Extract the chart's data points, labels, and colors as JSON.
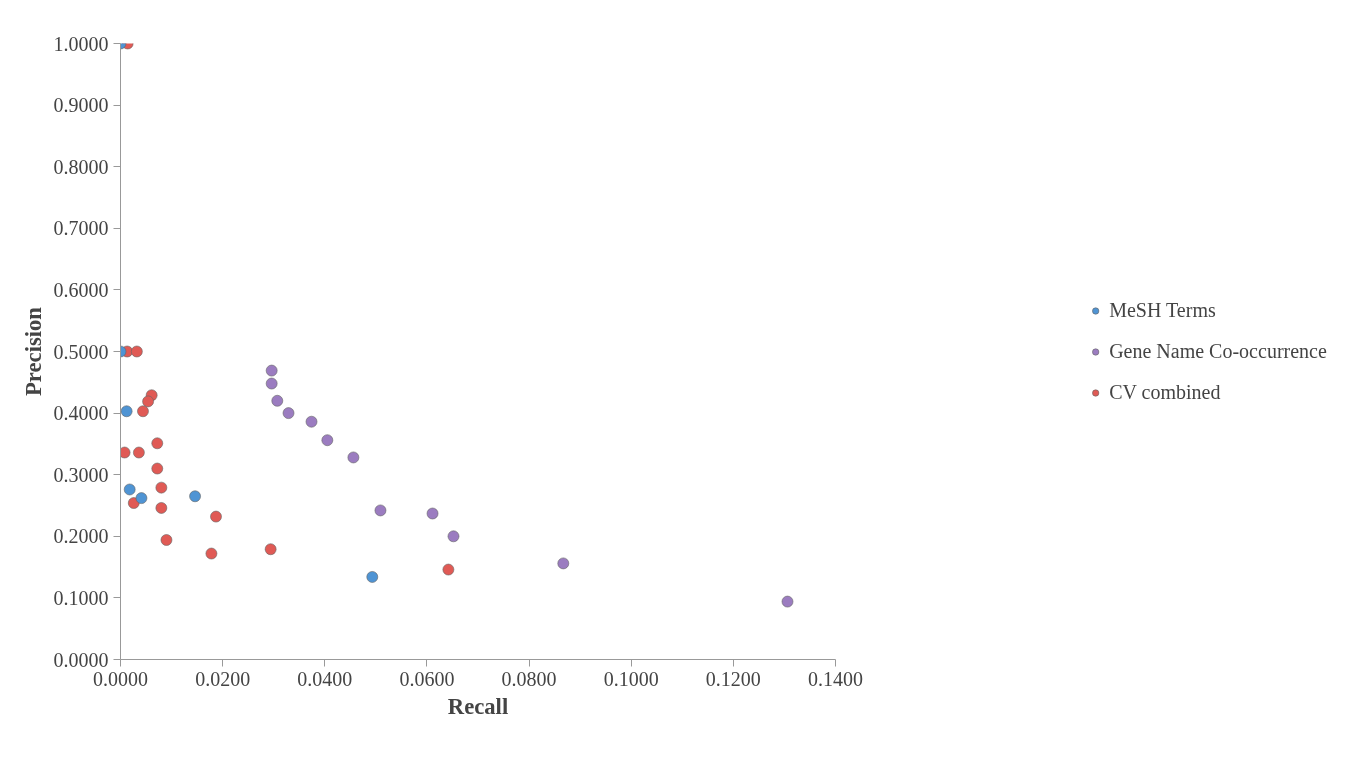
{
  "chart_data": {
    "type": "scatter",
    "xlabel": "Recall",
    "ylabel": "Precision",
    "marker": "circle",
    "legend": "right",
    "grid": false,
    "xlim": [
      0,
      0.14
    ],
    "ylim": [
      0,
      1
    ],
    "xticks": [
      {
        "value": 0,
        "label": "0.0000"
      },
      {
        "value": 0.02,
        "label": "0.0200"
      },
      {
        "value": 0.04,
        "label": "0.0400"
      },
      {
        "value": 0.06,
        "label": "0.0600"
      },
      {
        "value": 0.08,
        "label": "0.0800"
      },
      {
        "value": 0.1,
        "label": "0.1000"
      },
      {
        "value": 0.12,
        "label": "0.1200"
      },
      {
        "value": 0.14,
        "label": "0.1400"
      }
    ],
    "yticks": [
      {
        "value": 0,
        "label": "0.0000"
      },
      {
        "value": 0.1,
        "label": "0.1000"
      },
      {
        "value": 0.2,
        "label": "0.2000"
      },
      {
        "value": 0.3,
        "label": "0.3000"
      },
      {
        "value": 0.4,
        "label": "0.4000"
      },
      {
        "value": 0.5,
        "label": "0.5000"
      },
      {
        "value": 0.6,
        "label": "0.6000"
      },
      {
        "value": 0.7,
        "label": "0.7000"
      },
      {
        "value": 0.8,
        "label": "0.8000"
      },
      {
        "value": 0.9,
        "label": "0.9000"
      },
      {
        "value": 1,
        "label": "1.0000"
      }
    ],
    "series": [
      {
        "name": "MeSH Terms",
        "color": "#4f94d4",
        "x": [
          0,
          0,
          0.0012,
          0.0018,
          0.0041,
          0.0146,
          0.0493
        ],
        "values": [
          1.0,
          0.5,
          0.403,
          0.276,
          0.262,
          0.265,
          0.134
        ]
      },
      {
        "name": "Gene Name Co-occurrence",
        "color": "#9b7cc0",
        "x": [
          0.0296,
          0.0296,
          0.0307,
          0.0329,
          0.0374,
          0.0405,
          0.0456,
          0.0509,
          0.0611,
          0.0652,
          0.0867,
          0.1306
        ],
        "values": [
          0.469,
          0.448,
          0.42,
          0.4,
          0.386,
          0.356,
          0.328,
          0.242,
          0.237,
          0.2,
          0.156,
          0.094
        ]
      },
      {
        "name": "CV combined",
        "color": "#e05a55",
        "x": [
          0.0014,
          0.0013,
          0.0032,
          0.0061,
          0.0054,
          0.0044,
          0.0072,
          0.0008,
          0.0036,
          0.0072,
          0.008,
          0.0026,
          0.008,
          0.0187,
          0.009,
          0.0178,
          0.0294,
          0.0642
        ],
        "values": [
          1.0,
          0.5,
          0.5,
          0.429,
          0.419,
          0.403,
          0.351,
          0.336,
          0.336,
          0.31,
          0.279,
          0.254,
          0.246,
          0.232,
          0.194,
          0.172,
          0.179,
          0.146
        ]
      }
    ]
  }
}
